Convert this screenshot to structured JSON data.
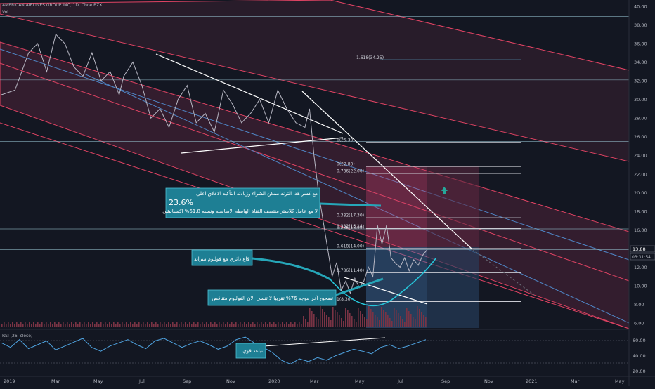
{
  "header": {
    "symbol_line": "AMERICAN AIRLINES GROUP INC, 1D, Cboe BZX",
    "volume_label": "Vol"
  },
  "rsi": {
    "label": "RSI (26, close)",
    "ticks": [
      "60.00",
      "40.00",
      "20.00"
    ]
  },
  "price_badge": {
    "price": "13.88",
    "countdown": "03:31:54"
  },
  "annotations": [
    {
      "id": "breakout",
      "lines": [
        "مع كسر هذا الترند ممكن الشراء وزيادته التأكيد الاغلاق اعلى",
        "23.6%",
        "لا مع عامل كلاستر منتصف القناة الهابطه الاساسيه ونسبه 61.8% اكسبانشن"
      ]
    },
    {
      "id": "rounding",
      "lines": [
        "قاع دائري مع فوليوم متزايد"
      ]
    },
    {
      "id": "volume",
      "lines": [
        "تصحيح آخر موجه 76% تقريبا لا تنسي الان الفوليوم متناقص"
      ]
    },
    {
      "id": "rsi",
      "lines": [
        "تباعد قوي"
      ]
    }
  ],
  "fib_labels": [
    {
      "text": "1.618(34.25)",
      "value": 34.25
    },
    {
      "text": "1(25.39)",
      "value": 25.39
    },
    {
      "text": "0(22.80)",
      "value": 22.8
    },
    {
      "text": "0.786(22.06)",
      "value": 22.06
    },
    {
      "text": "0.382(17.30)",
      "value": 17.3
    },
    {
      "text": "0.382(16.14)",
      "value": 16.14
    },
    {
      "text": "0.236(16.00)",
      "value": 16.0
    },
    {
      "text": "0.618(14.00)",
      "value": 14.0
    },
    {
      "text": "0.786(11.40)",
      "value": 11.4
    },
    {
      "text": "1(8.30)",
      "value": 8.3
    }
  ],
  "chart_data": {
    "type": "line",
    "title": "AMERICAN AIRLINES GROUP INC, 1D, Cboe BZX",
    "y_axis": {
      "ticks": [
        "40.00",
        "38.00",
        "36.00",
        "34.00",
        "32.00",
        "30.00",
        "28.00",
        "26.00",
        "24.00",
        "22.00",
        "20.00",
        "18.00",
        "16.00",
        "14.00",
        "12.00",
        "10.00",
        "8.00",
        "6.00"
      ],
      "ylim": [
        5.5,
        40.5
      ],
      "position": "right"
    },
    "x_axis": {
      "ticks": [
        "2019",
        "Mar",
        "May",
        "Jul",
        "Sep",
        "Nov",
        "2020",
        "Mar",
        "May",
        "Jul",
        "Sep",
        "Nov",
        "2021",
        "Mar",
        "May"
      ]
    },
    "series": [
      {
        "values": [
          [
            0,
            30.5
          ],
          [
            3,
            31
          ],
          [
            6,
            35
          ],
          [
            8,
            36
          ],
          [
            10,
            33
          ],
          [
            12,
            37
          ],
          [
            14,
            36
          ],
          [
            16,
            33.5
          ],
          [
            18,
            32.5
          ],
          [
            20,
            35
          ],
          [
            22,
            32
          ],
          [
            24,
            33
          ],
          [
            26,
            30.5
          ],
          [
            27,
            32.5
          ],
          [
            29,
            34
          ],
          [
            31,
            31.5
          ],
          [
            33,
            28
          ],
          [
            35,
            29
          ],
          [
            37,
            27
          ],
          [
            39,
            30
          ],
          [
            41,
            31.5
          ],
          [
            43,
            27.5
          ],
          [
            45,
            28.5
          ],
          [
            47,
            26.5
          ],
          [
            49,
            31
          ],
          [
            51,
            29.5
          ],
          [
            53,
            27.5
          ],
          [
            55,
            28.5
          ],
          [
            57,
            30
          ],
          [
            59,
            27.5
          ],
          [
            61,
            31
          ],
          [
            63,
            29
          ],
          [
            65,
            27.5
          ],
          [
            67,
            27
          ],
          [
            68,
            29
          ],
          [
            69,
            24
          ],
          [
            70,
            20
          ],
          [
            71,
            17
          ],
          [
            72,
            14
          ],
          [
            73,
            11
          ],
          [
            74,
            12.5
          ],
          [
            75,
            9.5
          ],
          [
            76,
            10.5
          ],
          [
            77,
            9.2
          ],
          [
            78,
            10.8
          ],
          [
            79,
            9.8
          ],
          [
            80,
            10.5
          ],
          [
            81,
            12
          ],
          [
            82,
            11
          ],
          [
            83,
            16.5
          ],
          [
            84,
            14.5
          ],
          [
            85,
            16.5
          ],
          [
            86,
            13
          ],
          [
            87,
            12.4
          ],
          [
            88,
            12
          ],
          [
            89,
            13
          ],
          [
            90,
            11.6
          ],
          [
            91,
            12.8
          ],
          [
            92,
            12.2
          ],
          [
            93,
            13.3
          ],
          [
            94,
            13.88
          ]
        ]
      }
    ],
    "horizontal_levels": [
      38.9,
      32.1,
      25.5,
      16.1,
      13.88
    ],
    "rsi_series": [
      55,
      48,
      60,
      46,
      52,
      58,
      44,
      50,
      56,
      62,
      48,
      42,
      50,
      55,
      60,
      52,
      46,
      58,
      62,
      55,
      48,
      54,
      58,
      52,
      45,
      50,
      60,
      64,
      55,
      48,
      40,
      28,
      22,
      30,
      26,
      32,
      28,
      35,
      40,
      45,
      42,
      38,
      48,
      52,
      46,
      50,
      55,
      60
    ]
  }
}
